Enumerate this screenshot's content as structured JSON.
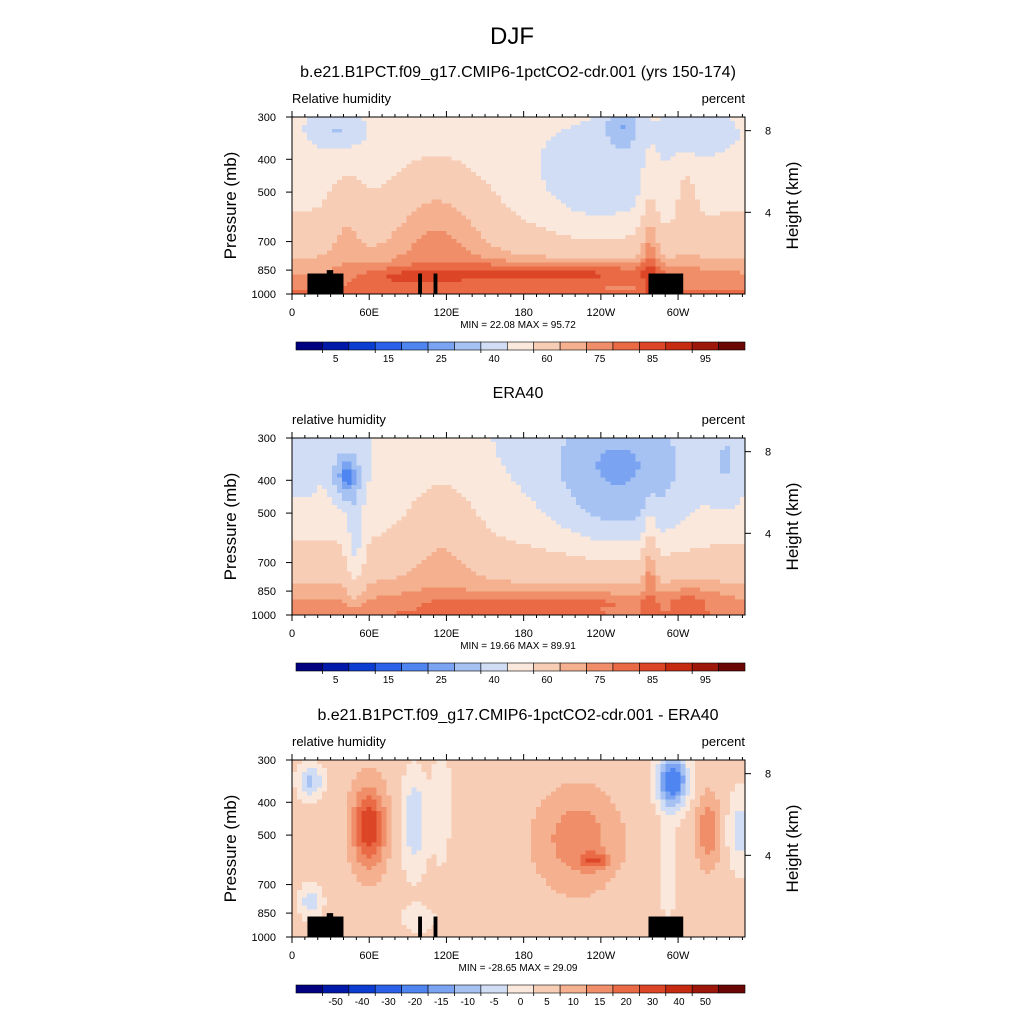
{
  "figure": {
    "title": "DJF"
  },
  "colors": {
    "rh_levels": [
      "#000080",
      "#0019a8",
      "#0b3dd0",
      "#2a61e8",
      "#4f85f0",
      "#7aa4f2",
      "#a6c2f3",
      "#d0ddf4",
      "#fae8dc",
      "#f8cdb5",
      "#f5b08f",
      "#f08e6a",
      "#ea6a46",
      "#dc4526",
      "#c62b12",
      "#9d170a",
      "#6a0603"
    ],
    "diff_levels": [
      "#000080",
      "#0019a8",
      "#0b3dd0",
      "#2a61e8",
      "#4f85f0",
      "#7aa4f2",
      "#a6c2f3",
      "#d0ddf4",
      "#fae8dc",
      "#f8cdb5",
      "#f5b08f",
      "#f08e6a",
      "#ea6a46",
      "#dc4526",
      "#c62b12",
      "#9d170a",
      "#6a0603"
    ],
    "topography": "#000000"
  },
  "chart_data": [
    {
      "type": "heatmap",
      "id": "model",
      "title": "b.e21.B1PCT.f09_g17.CMIP6-1pctCO2-cdr.001 (yrs 150-174)",
      "left_label": "Relative humidity",
      "right_label": "percent",
      "ylabel": "Pressure (mb)",
      "ylabel_right": "Height (km)",
      "x_ticks": [
        "0",
        "60E",
        "120E",
        "180",
        "120W",
        "60W"
      ],
      "x_tick_values": [
        0,
        60,
        120,
        180,
        240,
        300
      ],
      "xlim": [
        0,
        352
      ],
      "y_ticks": [
        "300",
        "400",
        "500",
        "700",
        "850",
        "1000"
      ],
      "y_tick_values": [
        300,
        400,
        500,
        700,
        850,
        1000
      ],
      "ylim": [
        300,
        1000
      ],
      "height_ticks": [
        "8",
        "4"
      ],
      "height_tick_values": [
        8,
        4
      ],
      "stats": "MIN =  22.08  MAX =  95.72",
      "min": 22.08,
      "max": 95.72,
      "field": "model",
      "topography": true,
      "colorbar": {
        "labels": [
          "5",
          "15",
          "25",
          "40",
          "60",
          "75",
          "85",
          "95"
        ],
        "label_box_index": [
          1,
          3,
          5,
          7,
          9,
          11,
          13,
          15
        ],
        "levels": [
          5,
          10,
          15,
          20,
          25,
          30,
          40,
          50,
          60,
          70,
          75,
          80,
          85,
          90,
          95,
          100
        ]
      }
    },
    {
      "type": "heatmap",
      "id": "obs",
      "title": "ERA40",
      "left_label": "relative humidity",
      "right_label": "percent",
      "ylabel": "Pressure (mb)",
      "ylabel_right": "Height (km)",
      "x_ticks": [
        "0",
        "60E",
        "120E",
        "180",
        "120W",
        "60W"
      ],
      "x_tick_values": [
        0,
        60,
        120,
        180,
        240,
        300
      ],
      "xlim": [
        0,
        352
      ],
      "y_ticks": [
        "300",
        "400",
        "500",
        "700",
        "850",
        "1000"
      ],
      "y_tick_values": [
        300,
        400,
        500,
        700,
        850,
        1000
      ],
      "ylim": [
        300,
        1000
      ],
      "height_ticks": [
        "8",
        "4"
      ],
      "height_tick_values": [
        8,
        4
      ],
      "stats": "MIN =  19.66  MAX =  89.91",
      "min": 19.66,
      "max": 89.91,
      "field": "obs",
      "topography": false,
      "colorbar": {
        "labels": [
          "5",
          "15",
          "25",
          "40",
          "60",
          "75",
          "85",
          "95"
        ],
        "label_box_index": [
          1,
          3,
          5,
          7,
          9,
          11,
          13,
          15
        ],
        "levels": [
          5,
          10,
          15,
          20,
          25,
          30,
          40,
          50,
          60,
          70,
          75,
          80,
          85,
          90,
          95,
          100
        ]
      }
    },
    {
      "type": "heatmap",
      "id": "diff",
      "title": "b.e21.B1PCT.f09_g17.CMIP6-1pctCO2-cdr.001 - ERA40",
      "left_label": "relative humidity",
      "right_label": "percent",
      "ylabel": "Pressure (mb)",
      "ylabel_right": "Height (km)",
      "x_ticks": [
        "0",
        "60E",
        "120E",
        "180",
        "120W",
        "60W"
      ],
      "x_tick_values": [
        0,
        60,
        120,
        180,
        240,
        300
      ],
      "xlim": [
        0,
        352
      ],
      "y_ticks": [
        "300",
        "400",
        "500",
        "700",
        "850",
        "1000"
      ],
      "y_tick_values": [
        300,
        400,
        500,
        700,
        850,
        1000
      ],
      "ylim": [
        300,
        1000
      ],
      "height_ticks": [
        "8",
        "4"
      ],
      "height_tick_values": [
        8,
        4
      ],
      "stats": "MIN = -28.65  MAX =  29.09",
      "min": -28.65,
      "max": 29.09,
      "field": "diff",
      "topography": true,
      "colorbar": {
        "labels": [
          "-50",
          "-40",
          "-30",
          "-20",
          "-15",
          "-10",
          "-5",
          "0",
          "5",
          "10",
          "15",
          "20",
          "30",
          "40",
          "50"
        ],
        "label_box_index": [
          1,
          2,
          3,
          4,
          5,
          6,
          7,
          8,
          9,
          10,
          11,
          12,
          13,
          14,
          15
        ],
        "levels": [
          -60,
          -50,
          -40,
          -30,
          -20,
          -15,
          -10,
          -5,
          0,
          5,
          10,
          15,
          20,
          30,
          40,
          50,
          60
        ]
      }
    }
  ]
}
